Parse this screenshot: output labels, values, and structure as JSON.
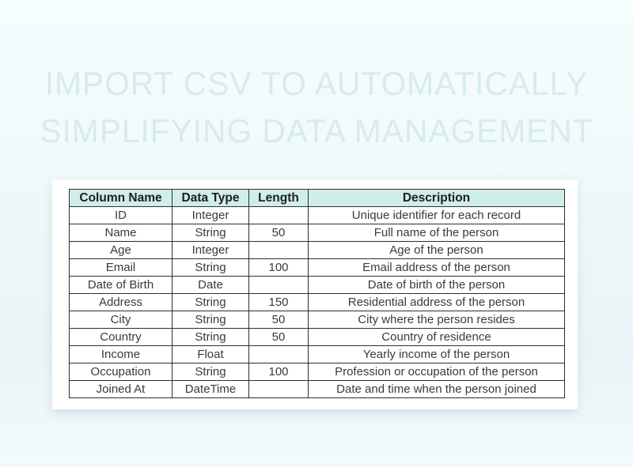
{
  "title": {
    "line1": "IMPORT CSV TO AUTOMATICALLY",
    "line2": "SIMPLIFYING DATA MANAGEMENT"
  },
  "table": {
    "headers": [
      "Column Name",
      "Data Type",
      "Length",
      "Description"
    ],
    "rows": [
      [
        "ID",
        "Integer",
        "",
        "Unique identifier for each record"
      ],
      [
        "Name",
        "String",
        "50",
        "Full name of the person"
      ],
      [
        "Age",
        "Integer",
        "",
        "Age of the person"
      ],
      [
        "Email",
        "String",
        "100",
        "Email address of the person"
      ],
      [
        "Date of Birth",
        "Date",
        "",
        "Date of birth of the person"
      ],
      [
        "Address",
        "String",
        "150",
        "Residential address of the person"
      ],
      [
        "City",
        "String",
        "50",
        "City where the person resides"
      ],
      [
        "Country",
        "String",
        "50",
        "Country of residence"
      ],
      [
        "Income",
        "Float",
        "",
        "Yearly income of the person"
      ],
      [
        "Occupation",
        "String",
        "100",
        "Profession or occupation of the person"
      ],
      [
        "Joined At",
        "DateTime",
        "",
        "Date and time when the person joined"
      ]
    ]
  },
  "colors": {
    "background_top": "#f6fdfe",
    "background_bottom": "#f2fafc",
    "title_text": "#d8ece7",
    "card_background": "#ffffff",
    "table_header_background": "#cfeee9",
    "table_border": "#2e2e2e",
    "header_text": "#1e1e1e",
    "body_text": "#3a3a3a"
  }
}
